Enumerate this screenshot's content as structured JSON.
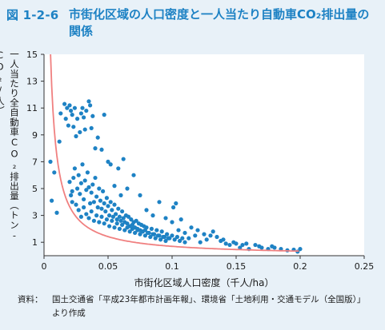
{
  "figure": {
    "number": "図 1-2-6",
    "title": "市街化区域の人口密度と一人当たり自動車CO₂排出量の関係"
  },
  "chart_data": {
    "type": "scatter",
    "title": "",
    "xlabel": "市街化区域人口密度（千人/ha）",
    "ylabel": "一人当たり全自動車CO₂排出量（トン-CO₂/人）",
    "xlim": [
      0,
      0.25
    ],
    "ylim": [
      0,
      15
    ],
    "x_ticks": [
      0,
      0.05,
      0.1,
      0.15,
      0.2,
      0.25
    ],
    "x_tick_labels": [
      "0",
      "0.05",
      "0.1",
      "0.15",
      "0.2",
      "0.25"
    ],
    "y_ticks": [
      1,
      3,
      5,
      7,
      9,
      11,
      13,
      15
    ],
    "y_tick_labels": [
      "1",
      "3",
      "5",
      "7",
      "9",
      "11",
      "13",
      "15"
    ],
    "grid": false,
    "legend": "none",
    "colors": {
      "points": "#1e82c4",
      "trend": "#f08080",
      "background": "#ffffff"
    },
    "trendline": {
      "type": "power",
      "coefficient": 0.065,
      "exponent": -1.03
    },
    "points": [
      [
        0.005,
        7.0
      ],
      [
        0.006,
        4.1
      ],
      [
        0.008,
        6.2
      ],
      [
        0.01,
        3.2
      ],
      [
        0.012,
        8.5
      ],
      [
        0.013,
        10.6
      ],
      [
        0.016,
        11.3
      ],
      [
        0.017,
        10.2
      ],
      [
        0.018,
        11.0
      ],
      [
        0.019,
        9.7
      ],
      [
        0.02,
        11.2
      ],
      [
        0.021,
        10.8
      ],
      [
        0.022,
        4.8
      ],
      [
        0.022,
        10.5
      ],
      [
        0.023,
        9.6
      ],
      [
        0.024,
        11.0
      ],
      [
        0.025,
        8.9
      ],
      [
        0.026,
        10.2
      ],
      [
        0.028,
        9.2
      ],
      [
        0.029,
        10.6
      ],
      [
        0.03,
        11.0
      ],
      [
        0.031,
        10.3
      ],
      [
        0.032,
        9.4
      ],
      [
        0.033,
        10.8
      ],
      [
        0.035,
        11.5
      ],
      [
        0.036,
        11.2
      ],
      [
        0.037,
        9.5
      ],
      [
        0.038,
        10.4
      ],
      [
        0.04,
        8.0
      ],
      [
        0.042,
        8.8
      ],
      [
        0.045,
        7.9
      ],
      [
        0.047,
        10.5
      ],
      [
        0.05,
        7.0
      ],
      [
        0.052,
        6.8
      ],
      [
        0.055,
        5.2
      ],
      [
        0.058,
        6.5
      ],
      [
        0.06,
        4.5
      ],
      [
        0.062,
        7.2
      ],
      [
        0.065,
        5.0
      ],
      [
        0.07,
        6.0
      ],
      [
        0.075,
        4.5
      ],
      [
        0.08,
        3.4
      ],
      [
        0.085,
        3.0
      ],
      [
        0.09,
        4.0
      ],
      [
        0.095,
        2.8
      ],
      [
        0.1,
        2.5
      ],
      [
        0.101,
        3.6
      ],
      [
        0.103,
        3.9
      ],
      [
        0.105,
        1.9
      ],
      [
        0.107,
        2.7
      ],
      [
        0.11,
        1.7
      ],
      [
        0.113,
        1.3
      ],
      [
        0.115,
        2.1
      ],
      [
        0.118,
        1.5
      ],
      [
        0.12,
        1.9
      ],
      [
        0.122,
        1.0
      ],
      [
        0.125,
        1.6
      ],
      [
        0.127,
        1.2
      ],
      [
        0.13,
        1.5
      ],
      [
        0.132,
        1.8
      ],
      [
        0.135,
        1.4
      ],
      [
        0.138,
        1.1
      ],
      [
        0.14,
        1.2
      ],
      [
        0.142,
        0.9
      ],
      [
        0.145,
        0.8
      ],
      [
        0.148,
        1.0
      ],
      [
        0.15,
        0.9
      ],
      [
        0.153,
        0.6
      ],
      [
        0.155,
        0.8
      ],
      [
        0.158,
        0.9
      ],
      [
        0.16,
        0.5
      ],
      [
        0.165,
        0.8
      ],
      [
        0.168,
        0.7
      ],
      [
        0.17,
        0.6
      ],
      [
        0.175,
        0.5
      ],
      [
        0.178,
        0.7
      ],
      [
        0.18,
        0.6
      ],
      [
        0.185,
        0.5
      ],
      [
        0.19,
        0.4
      ],
      [
        0.195,
        0.45
      ],
      [
        0.198,
        0.3
      ],
      [
        0.2,
        0.5
      ],
      [
        0.02,
        5.5
      ],
      [
        0.021,
        4.5
      ],
      [
        0.022,
        4.0
      ],
      [
        0.023,
        5.8
      ],
      [
        0.024,
        6.5
      ],
      [
        0.025,
        3.8
      ],
      [
        0.026,
        5.0
      ],
      [
        0.027,
        6.0
      ],
      [
        0.028,
        4.6
      ],
      [
        0.029,
        5.4
      ],
      [
        0.03,
        6.8
      ],
      [
        0.031,
        4.2
      ],
      [
        0.032,
        5.6
      ],
      [
        0.033,
        4.9
      ],
      [
        0.034,
        6.2
      ],
      [
        0.035,
        5.1
      ],
      [
        0.036,
        3.9
      ],
      [
        0.037,
        4.7
      ],
      [
        0.038,
        5.3
      ],
      [
        0.039,
        4.0
      ],
      [
        0.04,
        5.8
      ],
      [
        0.041,
        4.4
      ],
      [
        0.042,
        3.6
      ],
      [
        0.043,
        5.0
      ],
      [
        0.044,
        4.1
      ],
      [
        0.045,
        3.5
      ],
      [
        0.046,
        4.8
      ],
      [
        0.047,
        3.9
      ],
      [
        0.048,
        3.3
      ],
      [
        0.049,
        4.3
      ],
      [
        0.05,
        3.7
      ],
      [
        0.051,
        3.0
      ],
      [
        0.052,
        4.0
      ],
      [
        0.053,
        3.4
      ],
      [
        0.054,
        2.9
      ],
      [
        0.055,
        3.8
      ],
      [
        0.056,
        3.1
      ],
      [
        0.057,
        2.7
      ],
      [
        0.058,
        3.5
      ],
      [
        0.059,
        2.9
      ],
      [
        0.06,
        2.6
      ],
      [
        0.061,
        3.3
      ],
      [
        0.062,
        2.8
      ],
      [
        0.063,
        2.5
      ],
      [
        0.064,
        3.0
      ],
      [
        0.065,
        2.4
      ],
      [
        0.066,
        2.9
      ],
      [
        0.067,
        2.2
      ],
      [
        0.068,
        2.7
      ],
      [
        0.069,
        2.3
      ],
      [
        0.07,
        2.5
      ],
      [
        0.071,
        2.1
      ],
      [
        0.072,
        2.6
      ],
      [
        0.073,
        2.0
      ],
      [
        0.074,
        2.4
      ],
      [
        0.075,
        1.9
      ],
      [
        0.076,
        2.3
      ],
      [
        0.077,
        1.8
      ],
      [
        0.078,
        2.2
      ],
      [
        0.079,
        1.9
      ],
      [
        0.08,
        2.1
      ],
      [
        0.082,
        1.7
      ],
      [
        0.084,
        2.0
      ],
      [
        0.086,
        1.6
      ],
      [
        0.088,
        1.9
      ],
      [
        0.09,
        1.5
      ],
      [
        0.092,
        1.8
      ],
      [
        0.094,
        1.4
      ],
      [
        0.096,
        1.6
      ],
      [
        0.098,
        1.3
      ],
      [
        0.1,
        1.5
      ],
      [
        0.102,
        1.2
      ],
      [
        0.104,
        1.4
      ],
      [
        0.106,
        1.1
      ],
      [
        0.108,
        1.3
      ],
      [
        0.11,
        1.0
      ],
      [
        0.027,
        3.4
      ],
      [
        0.029,
        2.9
      ],
      [
        0.031,
        3.6
      ],
      [
        0.033,
        3.1
      ],
      [
        0.035,
        2.8
      ],
      [
        0.037,
        3.3
      ],
      [
        0.039,
        2.6
      ],
      [
        0.041,
        3.0
      ],
      [
        0.043,
        2.5
      ],
      [
        0.045,
        2.9
      ],
      [
        0.047,
        2.4
      ],
      [
        0.049,
        2.7
      ],
      [
        0.051,
        2.2
      ],
      [
        0.053,
        2.6
      ],
      [
        0.055,
        2.1
      ],
      [
        0.057,
        2.4
      ],
      [
        0.059,
        2.0
      ],
      [
        0.061,
        2.3
      ],
      [
        0.063,
        1.9
      ],
      [
        0.065,
        2.1
      ],
      [
        0.067,
        1.8
      ],
      [
        0.069,
        2.0
      ],
      [
        0.071,
        1.7
      ],
      [
        0.073,
        1.9
      ],
      [
        0.075,
        1.6
      ],
      [
        0.077,
        1.8
      ],
      [
        0.079,
        1.5
      ],
      [
        0.081,
        1.7
      ],
      [
        0.083,
        1.4
      ],
      [
        0.085,
        1.6
      ],
      [
        0.087,
        1.3
      ],
      [
        0.089,
        1.5
      ],
      [
        0.091,
        1.2
      ],
      [
        0.093,
        1.4
      ],
      [
        0.095,
        1.1
      ],
      [
        0.097,
        1.3
      ]
    ]
  },
  "source": {
    "label": "資料：",
    "text": "国土交通省「平成23年都市計画年報」、環境省「土地利用・交通モデル（全国版）」より作成"
  }
}
